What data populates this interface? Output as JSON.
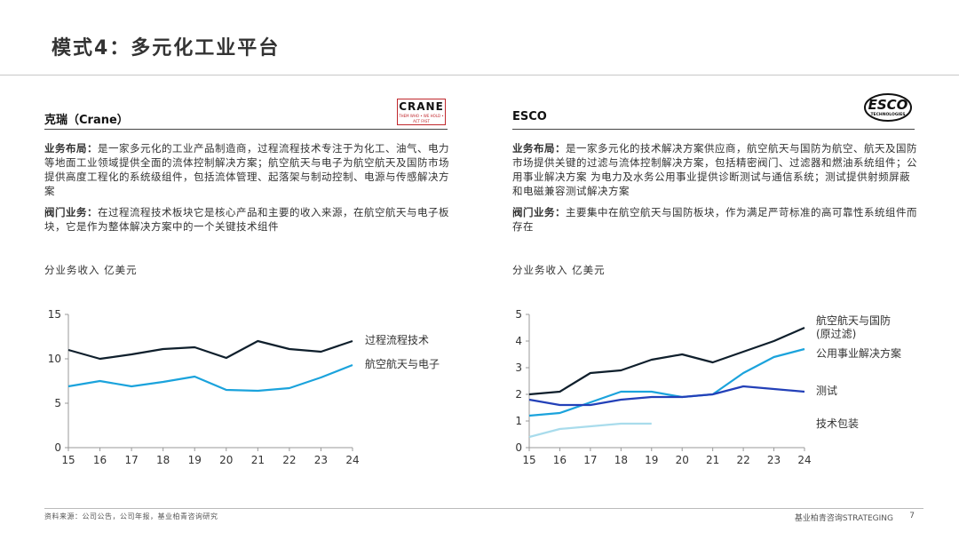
{
  "page": {
    "title": "模式4：多元化工业平台",
    "footer_source": "资料来源：公司公告，公司年报，基业柏青咨询研究",
    "footer_brand": "基业柏青咨询STRATEGING",
    "page_number": "7"
  },
  "left": {
    "company": "克瑞（Crane）",
    "logo_text": "CRANE",
    "logo_tagline": "THEM WHO • WE HOLD • ACT FAST",
    "business_label": "业务布局：",
    "business_text": "是一家多元化的工业产品制造商，过程流程技术专注于为化工、油气、电力等地面工业领域提供全面的流体控制解决方案；航空航天与电子为航空航天及国防市场提供高度工程化的系统级组件，包括流体管理、起落架与制动控制、电源与传感解决方案",
    "valve_label": "阀门业务：",
    "valve_text": "在过程流程技术板块它是核心产品和主要的收入来源，在航空航天与电子板块，它是作为整体解决方案中的一个关键技术组件",
    "revenue_label": "分业务收入 亿美元"
  },
  "right": {
    "company": "ESCO",
    "logo_text": "ESCO",
    "logo_subtext": "TECHNOLOGIES",
    "business_label": "业务布局：",
    "business_text": "是一家多元化的技术解决方案供应商，航空航天与国防为航空、航天及国防市场提供关键的过滤与流体控制解决方案，包括精密阀门、过滤器和燃油系统组件；公用事业解决方案 为电力及水务公用事业提供诊断测试与通信系统；测试提供射频屏蔽和电磁兼容测试解决方案",
    "valve_label": "阀门业务：",
    "valve_text": "主要集中在航空航天与国防板块，作为满足严苛标准的高可靠性系统组件而存在",
    "revenue_label": "分业务收入 亿美元"
  },
  "chart_data": [
    {
      "type": "line",
      "title": "",
      "xlabel": "",
      "ylabel": "分业务收入 亿美元",
      "x": [
        "15",
        "16",
        "17",
        "18",
        "19",
        "20",
        "21",
        "22",
        "23",
        "24"
      ],
      "ylim": [
        0,
        15
      ],
      "yticks": [
        0,
        5,
        10,
        15
      ],
      "series": [
        {
          "name": "过程流程技术",
          "color": "#0f1f2c",
          "values": [
            11.0,
            10.0,
            10.5,
            11.1,
            11.3,
            10.1,
            12.0,
            11.1,
            10.8,
            12.0
          ]
        },
        {
          "name": "航空航天与电子",
          "color": "#1ba3dc",
          "values": [
            6.9,
            7.5,
            6.9,
            7.4,
            8.0,
            6.5,
            6.4,
            6.7,
            7.9,
            9.3
          ]
        }
      ]
    },
    {
      "type": "line",
      "title": "",
      "xlabel": "",
      "ylabel": "分业务收入 亿美元",
      "x": [
        "15",
        "16",
        "17",
        "18",
        "19",
        "20",
        "21",
        "22",
        "23",
        "24"
      ],
      "ylim": [
        0,
        5
      ],
      "yticks": [
        0,
        1,
        2,
        3,
        4,
        5
      ],
      "series": [
        {
          "name": "航空航天与国防\n(原过滤)",
          "color": "#0f1f2c",
          "values": [
            2.0,
            2.1,
            2.8,
            2.9,
            3.3,
            3.5,
            3.2,
            3.6,
            4.0,
            4.5
          ]
        },
        {
          "name": "公用事业解决方案",
          "color": "#1ba3dc",
          "values": [
            1.2,
            1.3,
            1.7,
            2.1,
            2.1,
            1.9,
            2.0,
            2.8,
            3.4,
            3.7
          ]
        },
        {
          "name": "测试",
          "color": "#2340b8",
          "values": [
            1.8,
            1.6,
            1.6,
            1.8,
            1.9,
            1.9,
            2.0,
            2.3,
            2.2,
            2.1
          ]
        },
        {
          "name": "技术包装",
          "color": "#a9dcec",
          "values": [
            0.4,
            0.7,
            0.8,
            0.9,
            0.9,
            null,
            null,
            null,
            null,
            null
          ]
        }
      ]
    }
  ]
}
